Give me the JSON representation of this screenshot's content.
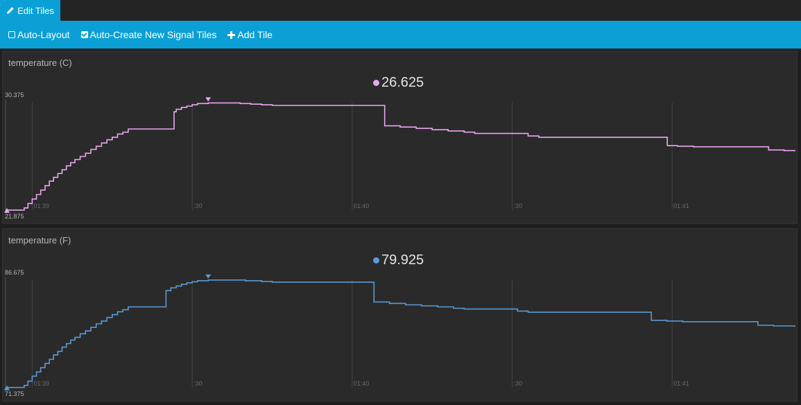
{
  "header": {
    "edit_tiles_label": "Edit Tiles"
  },
  "toolbar": {
    "auto_layout_label": "Auto-Layout",
    "auto_layout_checked": false,
    "auto_create_label": "Auto-Create New Signal Tiles",
    "auto_create_checked": true,
    "add_tile_label": "Add Tile"
  },
  "tiles": [
    {
      "title": "temperature (C)",
      "current_value": "26.625",
      "color": "#e9a7f0",
      "max_label": "30.375",
      "min_label": "21.875",
      "chart_data": {
        "type": "line",
        "ylim": [
          21.875,
          30.375
        ],
        "time_ticks": [
          "01:39",
          ":30",
          "01:40",
          ":30",
          "01:41"
        ],
        "time_tick_seconds": [
          5,
          35,
          65,
          95,
          125
        ],
        "points": [
          [
            0,
            21.88
          ],
          [
            3,
            21.88
          ],
          [
            3.5,
            22.05
          ],
          [
            4.2,
            22.4
          ],
          [
            5,
            22.75
          ],
          [
            5.8,
            23.1
          ],
          [
            6.6,
            23.45
          ],
          [
            7.4,
            23.8
          ],
          [
            8.2,
            24.15
          ],
          [
            9,
            24.45
          ],
          [
            9.8,
            24.75
          ],
          [
            10.6,
            25.05
          ],
          [
            11.4,
            25.35
          ],
          [
            12.2,
            25.6
          ],
          [
            13,
            25.85
          ],
          [
            14,
            26.1
          ],
          [
            15,
            26.35
          ],
          [
            16,
            26.65
          ],
          [
            17,
            26.9
          ],
          [
            18,
            27.15
          ],
          [
            19,
            27.4
          ],
          [
            20,
            27.6
          ],
          [
            21,
            27.85
          ],
          [
            22,
            28.0
          ],
          [
            23,
            28.25
          ],
          [
            31.5,
            28.25
          ],
          [
            31.6,
            29.6
          ],
          [
            32,
            29.8
          ],
          [
            33,
            29.95
          ],
          [
            34,
            30.05
          ],
          [
            35,
            30.15
          ],
          [
            36,
            30.25
          ],
          [
            38,
            30.3
          ],
          [
            41,
            30.3
          ],
          [
            44,
            30.25
          ],
          [
            46,
            30.2
          ],
          [
            48,
            30.15
          ],
          [
            50,
            30.1
          ],
          [
            71,
            30.1
          ],
          [
            71.1,
            28.5
          ],
          [
            74,
            28.4
          ],
          [
            77,
            28.3
          ],
          [
            80,
            28.2
          ],
          [
            83,
            28.1
          ],
          [
            86,
            28.0
          ],
          [
            88,
            27.9
          ],
          [
            97,
            27.9
          ],
          [
            98,
            27.7
          ],
          [
            100,
            27.6
          ],
          [
            124,
            27.6
          ],
          [
            124.1,
            26.95
          ],
          [
            126,
            26.9
          ],
          [
            129,
            26.85
          ],
          [
            143,
            26.85
          ],
          [
            143.1,
            26.6
          ],
          [
            146,
            26.55
          ],
          [
            148,
            26.5
          ]
        ]
      }
    },
    {
      "title": "temperature (F)",
      "current_value": "79.925",
      "color": "#5b9bd5",
      "max_label": "86.675",
      "min_label": "71.375",
      "chart_data": {
        "type": "line",
        "ylim": [
          71.375,
          86.675
        ],
        "time_ticks": [
          "01:39",
          ":30",
          "01:40",
          ":30",
          "01:41"
        ],
        "time_tick_seconds": [
          5,
          35,
          65,
          95,
          125
        ],
        "points": [
          [
            0,
            71.4
          ],
          [
            3,
            71.4
          ],
          [
            3.5,
            71.7
          ],
          [
            4.2,
            72.3
          ],
          [
            5,
            73.0
          ],
          [
            5.8,
            73.6
          ],
          [
            6.6,
            74.2
          ],
          [
            7.4,
            74.8
          ],
          [
            8.2,
            75.4
          ],
          [
            9,
            76.0
          ],
          [
            9.8,
            76.5
          ],
          [
            10.6,
            77.1
          ],
          [
            11.4,
            77.6
          ],
          [
            12.2,
            78.1
          ],
          [
            13,
            78.5
          ],
          [
            14,
            79.0
          ],
          [
            15,
            79.4
          ],
          [
            16,
            79.9
          ],
          [
            17,
            80.4
          ],
          [
            18,
            80.8
          ],
          [
            19,
            81.3
          ],
          [
            20,
            81.7
          ],
          [
            21,
            82.1
          ],
          [
            22,
            82.4
          ],
          [
            23,
            82.8
          ],
          [
            30,
            82.8
          ],
          [
            30.1,
            85.1
          ],
          [
            31,
            85.5
          ],
          [
            32,
            85.75
          ],
          [
            33,
            86.0
          ],
          [
            34,
            86.2
          ],
          [
            35,
            86.35
          ],
          [
            36,
            86.5
          ],
          [
            38,
            86.6
          ],
          [
            42,
            86.6
          ],
          [
            45,
            86.5
          ],
          [
            48,
            86.4
          ],
          [
            50,
            86.3
          ],
          [
            69,
            86.3
          ],
          [
            69.1,
            83.5
          ],
          [
            72,
            83.3
          ],
          [
            75,
            83.1
          ],
          [
            78,
            82.95
          ],
          [
            81,
            82.8
          ],
          [
            84,
            82.6
          ],
          [
            86,
            82.5
          ],
          [
            95,
            82.5
          ],
          [
            96,
            82.2
          ],
          [
            98,
            82.05
          ],
          [
            121,
            82.05
          ],
          [
            121.1,
            80.9
          ],
          [
            124,
            80.8
          ],
          [
            127,
            80.7
          ],
          [
            141,
            80.7
          ],
          [
            141.1,
            80.2
          ],
          [
            144,
            80.1
          ],
          [
            148,
            80.0
          ]
        ]
      }
    }
  ]
}
